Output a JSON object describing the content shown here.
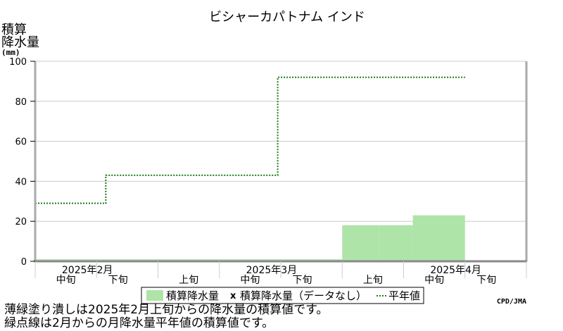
{
  "chart_data": {
    "type": "area",
    "title": "ビシャーカパトナム インド",
    "ylabel": [
      "積算",
      "降水量",
      "(mm)"
    ],
    "ylim": [
      0,
      100
    ],
    "yticks": [
      0,
      20,
      40,
      60,
      80,
      100
    ],
    "grid": true,
    "periods": [
      {
        "label": "中旬",
        "month": "2025年2月"
      },
      {
        "label": "下旬",
        "month": "2025年2月"
      },
      {
        "label": "上旬",
        "month": "2025年3月"
      },
      {
        "label": "中旬",
        "month": "2025年3月"
      },
      {
        "label": "下旬",
        "month": "2025年3月"
      },
      {
        "label": "上旬",
        "month": "2025年4月"
      },
      {
        "label": "中旬",
        "month": "2025年4月"
      },
      {
        "label": "下旬",
        "month": "2025年4月"
      }
    ],
    "months": [
      "2025年2月",
      "2025年3月",
      "2025年4月"
    ],
    "series": [
      {
        "name": "積算降水量",
        "kind": "area",
        "color": "#aee4a8",
        "x_range": [
          0,
          1
        ],
        "segments": [
          {
            "from": 0,
            "to": 3,
            "value": 1
          },
          {
            "from": 3,
            "to": 4,
            "value": 1
          },
          {
            "from": 4,
            "to": 5,
            "value": 1
          },
          {
            "from": 5,
            "to": 5.6,
            "value": 18
          },
          {
            "from": 5.6,
            "to": 6.15,
            "value": 18
          },
          {
            "from": 6.15,
            "to": 7,
            "value": 23
          }
        ]
      },
      {
        "name": "平年値",
        "kind": "step-line",
        "color": "#1a7a1a",
        "segments": [
          {
            "from": 0,
            "to": 1.15,
            "value": 29
          },
          {
            "from": 1.15,
            "to": 3.95,
            "value": 43
          },
          {
            "from": 3.95,
            "to": 7,
            "value": 92
          }
        ]
      }
    ],
    "legend": {
      "placement": "bottom",
      "items": [
        "積算降水量",
        "積算降水量（データなし）",
        "平年値"
      ],
      "marker_x": "x"
    },
    "credit": "CPD/JMA"
  },
  "notes": [
    "薄緑塗り潰しは2025年2月上旬からの降水量の積算値です。",
    "緑点線は2月からの月降水量平年値の積算値です。"
  ]
}
